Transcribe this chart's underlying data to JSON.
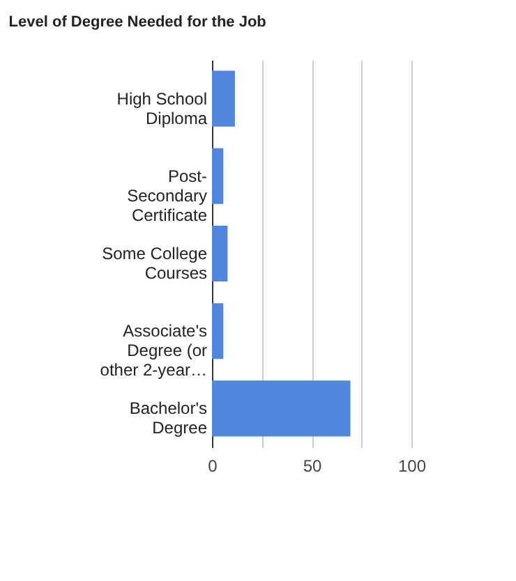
{
  "chart_data": {
    "type": "bar",
    "orientation": "horizontal",
    "title": "Level of Degree Needed for the Job",
    "categories": [
      "High School Diploma",
      "Post-Secondary Certificate",
      "Some College Courses",
      "Associate's Degree (or other 2-year…",
      "Bachelor's Degree"
    ],
    "values": [
      11.5,
      5.7,
      7.8,
      5.7,
      69.4
    ],
    "color": "#5086e0",
    "xlim": [
      0,
      100
    ],
    "xticks": [
      0,
      {
        "value": 25,
        "label": null
      },
      50,
      {
        "value": 75,
        "label": null
      },
      100
    ],
    "grid": "x"
  }
}
